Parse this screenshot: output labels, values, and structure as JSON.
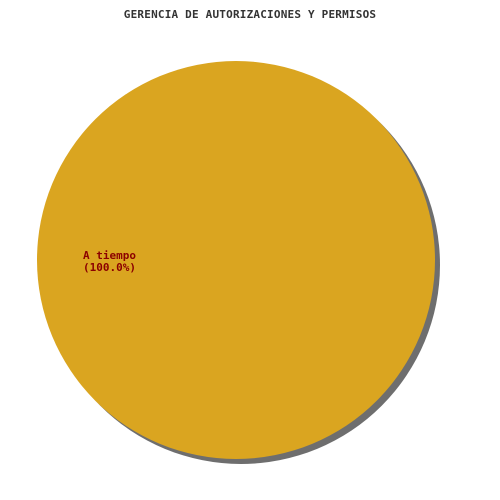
{
  "chart_data": {
    "type": "pie",
    "title": "GERENCIA DE AUTORIZACIONES Y PERMISOS",
    "slices": [
      {
        "label": "A tiempo",
        "value": 100.0,
        "percent_label": "(100.0%)"
      }
    ],
    "colors": {
      "slice": "#DAA520",
      "shadow": "#6E6E6E",
      "label": "#8B0000",
      "background": "#FFFFFF"
    }
  }
}
